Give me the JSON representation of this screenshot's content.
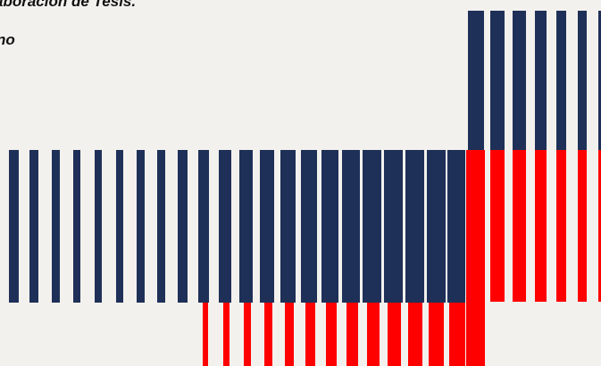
{
  "text": {
    "line1": "aboración de Tesis.",
    "line2": "no"
  },
  "colors": {
    "background": "#f3f1ed",
    "navy": "#1f3058",
    "red": "#ff0000",
    "text": "#111111"
  }
}
